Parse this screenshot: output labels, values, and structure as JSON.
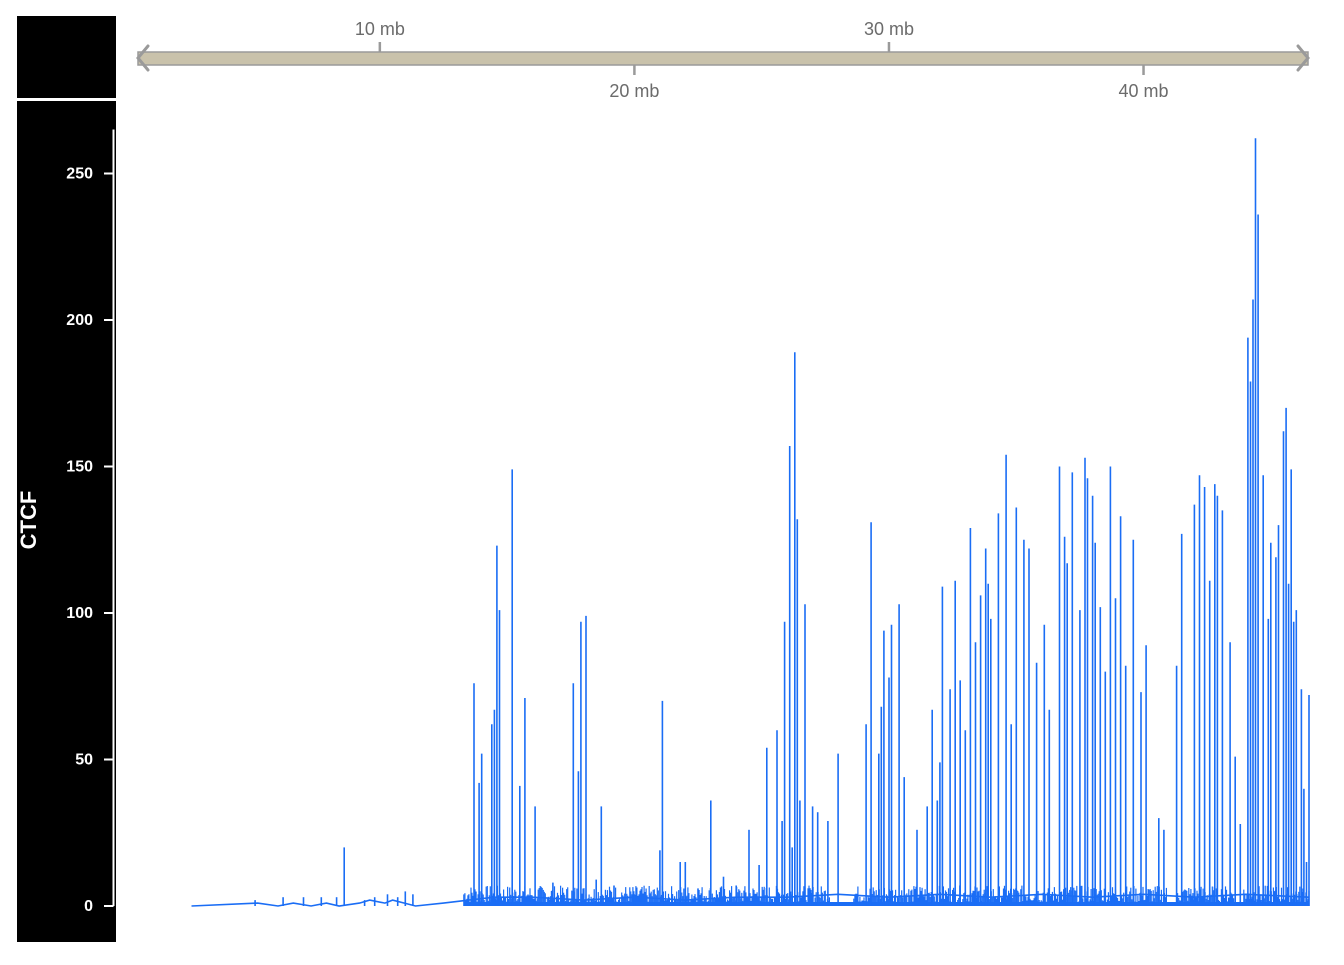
{
  "track_name": "CTCF",
  "genome_axis": {
    "ticks": [
      {
        "value": 10,
        "label": "10 mb"
      },
      {
        "value": 20,
        "label": "20 mb"
      },
      {
        "value": 30,
        "label": "30 mb"
      },
      {
        "value": 40,
        "label": "40 mb"
      }
    ],
    "range_mb": [
      0.5,
      46.5
    ]
  },
  "colors": {
    "signal": "#1a6df5",
    "panel": "#000000",
    "panel_text": "#ffffff",
    "axis_bar": "#c9c2ab",
    "axis_line": "#9a9a9a",
    "axis_text": "#6b6b6b"
  },
  "chart_data": {
    "type": "line",
    "title": "",
    "xlabel": "",
    "ylabel": "CTCF",
    "xunit": "mb",
    "xlim": [
      0.5,
      46.5
    ],
    "ylim": [
      0,
      265
    ],
    "yticks": [
      0,
      50,
      100,
      150,
      200,
      250
    ],
    "grid": false,
    "legend": "none",
    "series": [
      {
        "baseline": [
          [
            2.6,
            0
          ],
          [
            5.2,
            1
          ],
          [
            6.0,
            0
          ],
          [
            6.6,
            1
          ],
          [
            7.3,
            0
          ],
          [
            7.9,
            1
          ],
          [
            8.4,
            0
          ],
          [
            9.2,
            1
          ],
          [
            9.6,
            2
          ],
          [
            10.2,
            1
          ],
          [
            10.5,
            2
          ],
          [
            11.4,
            0
          ],
          [
            12.5,
            1
          ],
          [
            13.5,
            2
          ],
          [
            14.5,
            3
          ],
          [
            16.0,
            3
          ],
          [
            18.0,
            2
          ],
          [
            20.0,
            3
          ],
          [
            22.0,
            2
          ],
          [
            24.0,
            3
          ],
          [
            26.0,
            3
          ],
          [
            28.0,
            4
          ],
          [
            30.0,
            3
          ],
          [
            32.0,
            4
          ],
          [
            34.0,
            3
          ],
          [
            36.0,
            4
          ],
          [
            38.0,
            3
          ],
          [
            40.0,
            4
          ],
          [
            42.0,
            3
          ],
          [
            44.0,
            4
          ],
          [
            46.5,
            3
          ]
        ],
        "peaks": [
          [
            5.1,
            2
          ],
          [
            6.2,
            3
          ],
          [
            7.0,
            3
          ],
          [
            7.7,
            3
          ],
          [
            8.3,
            3
          ],
          [
            8.6,
            20
          ],
          [
            9.4,
            2
          ],
          [
            9.8,
            3
          ],
          [
            10.3,
            4
          ],
          [
            10.7,
            3
          ],
          [
            11.0,
            5
          ],
          [
            11.3,
            4
          ],
          [
            13.7,
            76
          ],
          [
            13.9,
            42
          ],
          [
            14.0,
            52
          ],
          [
            14.4,
            62
          ],
          [
            14.5,
            67
          ],
          [
            14.6,
            123
          ],
          [
            14.7,
            101
          ],
          [
            15.2,
            149
          ],
          [
            15.5,
            41
          ],
          [
            15.7,
            71
          ],
          [
            16.1,
            34
          ],
          [
            16.8,
            8
          ],
          [
            17.6,
            76
          ],
          [
            17.8,
            46
          ],
          [
            17.9,
            97
          ],
          [
            18.1,
            99
          ],
          [
            18.5,
            9
          ],
          [
            18.7,
            34
          ],
          [
            19.2,
            7
          ],
          [
            20.0,
            4
          ],
          [
            21.0,
            19
          ],
          [
            21.1,
            70
          ],
          [
            21.8,
            15
          ],
          [
            22.0,
            15
          ],
          [
            22.5,
            6
          ],
          [
            23.0,
            36
          ],
          [
            23.5,
            10
          ],
          [
            24.0,
            7
          ],
          [
            24.5,
            26
          ],
          [
            24.9,
            14
          ],
          [
            25.2,
            54
          ],
          [
            25.6,
            60
          ],
          [
            25.8,
            29
          ],
          [
            25.9,
            97
          ],
          [
            26.1,
            157
          ],
          [
            26.2,
            20
          ],
          [
            26.3,
            189
          ],
          [
            26.4,
            132
          ],
          [
            26.5,
            36
          ],
          [
            26.7,
            103
          ],
          [
            27.0,
            34
          ],
          [
            27.2,
            32
          ],
          [
            27.6,
            29
          ],
          [
            28.0,
            52
          ],
          [
            29.1,
            62
          ],
          [
            29.3,
            131
          ],
          [
            29.6,
            52
          ],
          [
            29.7,
            68
          ],
          [
            29.8,
            94
          ],
          [
            30.0,
            78
          ],
          [
            30.1,
            96
          ],
          [
            30.4,
            103
          ],
          [
            30.6,
            44
          ],
          [
            31.1,
            26
          ],
          [
            31.5,
            34
          ],
          [
            31.7,
            67
          ],
          [
            31.9,
            36
          ],
          [
            32.0,
            49
          ],
          [
            32.1,
            109
          ],
          [
            32.4,
            74
          ],
          [
            32.6,
            111
          ],
          [
            32.8,
            77
          ],
          [
            33.0,
            60
          ],
          [
            33.2,
            129
          ],
          [
            33.4,
            90
          ],
          [
            33.6,
            106
          ],
          [
            33.8,
            122
          ],
          [
            33.9,
            110
          ],
          [
            34.0,
            98
          ],
          [
            34.3,
            134
          ],
          [
            34.6,
            154
          ],
          [
            34.8,
            62
          ],
          [
            35.0,
            136
          ],
          [
            35.3,
            125
          ],
          [
            35.5,
            122
          ],
          [
            35.8,
            83
          ],
          [
            36.1,
            96
          ],
          [
            36.3,
            67
          ],
          [
            36.7,
            150
          ],
          [
            36.9,
            126
          ],
          [
            37.0,
            117
          ],
          [
            37.2,
            148
          ],
          [
            37.5,
            101
          ],
          [
            37.7,
            153
          ],
          [
            37.8,
            146
          ],
          [
            38.0,
            140
          ],
          [
            38.1,
            124
          ],
          [
            38.3,
            102
          ],
          [
            38.5,
            80
          ],
          [
            38.7,
            150
          ],
          [
            38.9,
            105
          ],
          [
            39.1,
            133
          ],
          [
            39.3,
            82
          ],
          [
            39.6,
            125
          ],
          [
            39.9,
            73
          ],
          [
            40.1,
            89
          ],
          [
            40.6,
            30
          ],
          [
            40.8,
            26
          ],
          [
            41.3,
            82
          ],
          [
            41.5,
            127
          ],
          [
            42.0,
            137
          ],
          [
            42.2,
            147
          ],
          [
            42.4,
            143
          ],
          [
            42.6,
            111
          ],
          [
            42.8,
            144
          ],
          [
            42.9,
            140
          ],
          [
            43.1,
            135
          ],
          [
            43.4,
            90
          ],
          [
            43.6,
            51
          ],
          [
            43.8,
            28
          ],
          [
            44.1,
            194
          ],
          [
            44.2,
            179
          ],
          [
            44.3,
            207
          ],
          [
            44.4,
            262
          ],
          [
            44.5,
            236
          ],
          [
            44.7,
            147
          ],
          [
            44.9,
            98
          ],
          [
            45.0,
            124
          ],
          [
            45.2,
            119
          ],
          [
            45.3,
            130
          ],
          [
            45.5,
            162
          ],
          [
            45.6,
            170
          ],
          [
            45.7,
            110
          ],
          [
            45.8,
            149
          ],
          [
            45.9,
            97
          ],
          [
            46.0,
            101
          ],
          [
            46.2,
            74
          ],
          [
            46.3,
            40
          ],
          [
            46.4,
            15
          ],
          [
            46.5,
            72
          ]
        ]
      }
    ]
  }
}
